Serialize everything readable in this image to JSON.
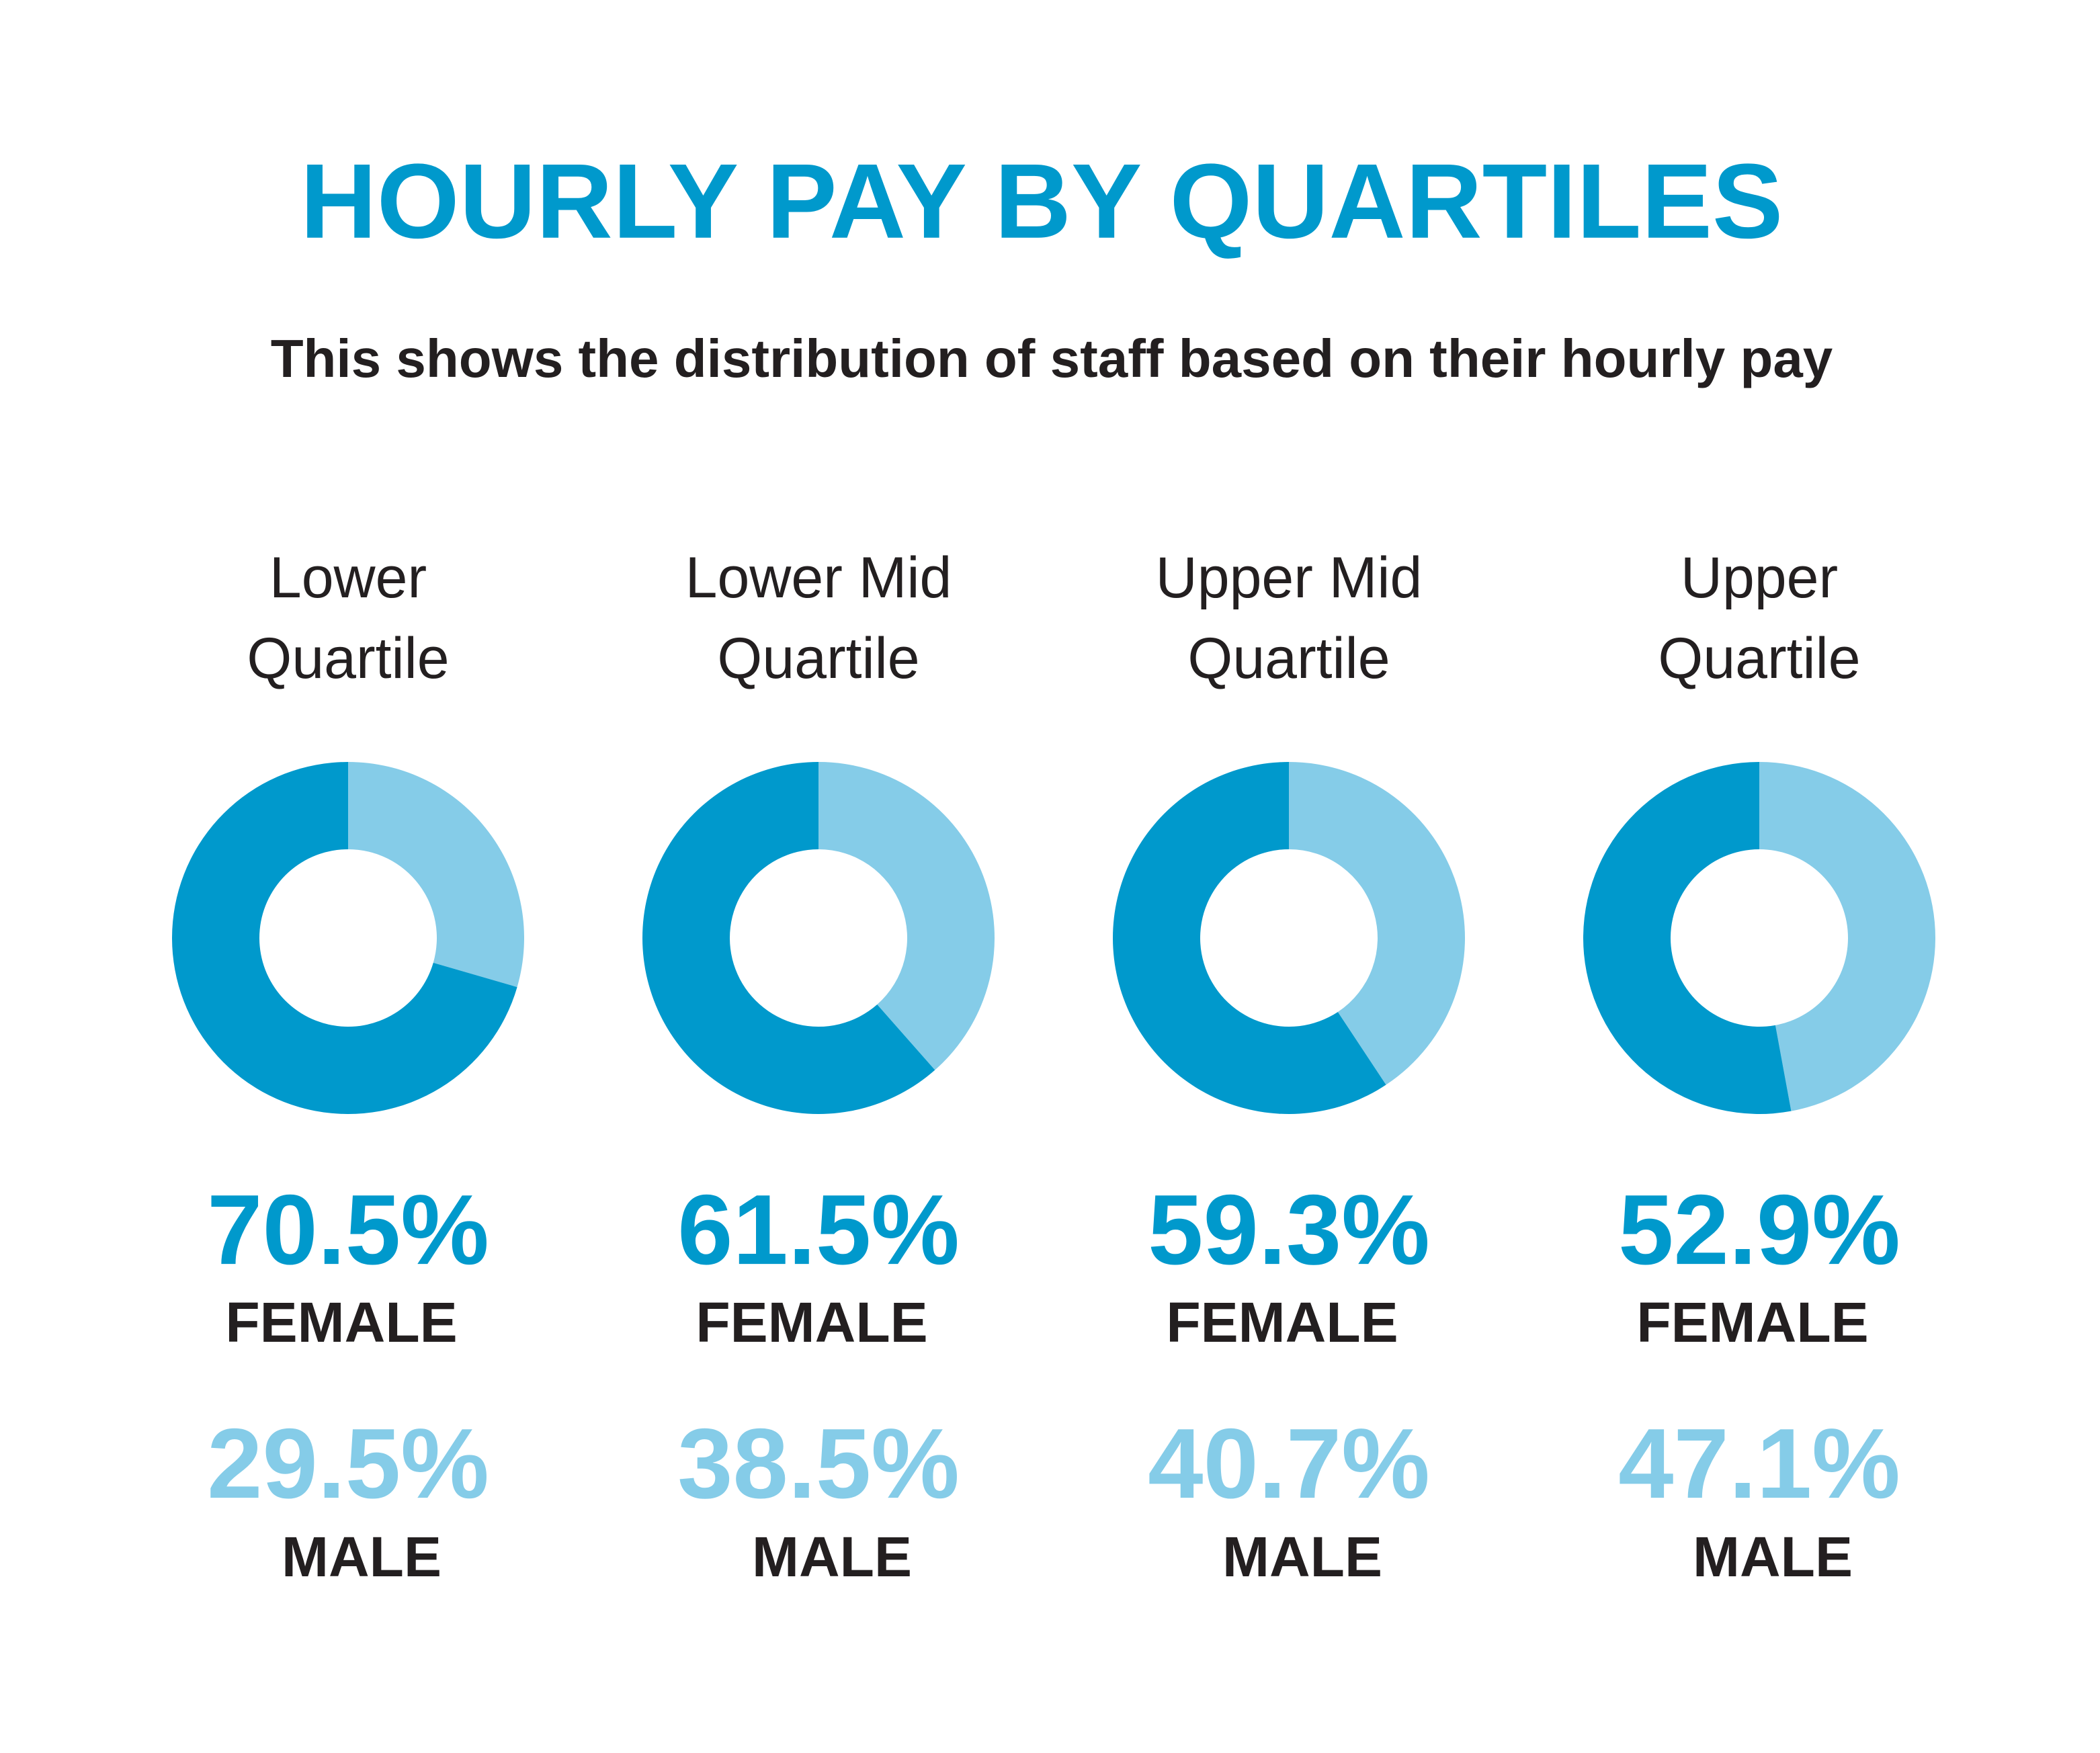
{
  "title": "HOURLY PAY BY QUARTILES",
  "subtitle": "This shows the distribution of staff based on their hourly pay",
  "chart_data": [
    {
      "type": "pie",
      "title": "Lower Quartile",
      "donut": true,
      "series": [
        {
          "name": "FEMALE",
          "color": "#0099cc",
          "values": [
            70.5
          ],
          "value_labels": [
            "70.5%"
          ]
        },
        {
          "name": "MALE",
          "color": "#85cce8",
          "values": [
            29.5
          ],
          "value_labels": [
            "29.5%"
          ]
        }
      ]
    },
    {
      "type": "pie",
      "title": "Lower Mid Quartile",
      "donut": true,
      "series": [
        {
          "name": "FEMALE",
          "color": "#0099cc",
          "values": [
            61.5
          ],
          "value_labels": [
            "61.5%"
          ]
        },
        {
          "name": "MALE",
          "color": "#85cce8",
          "values": [
            38.5
          ],
          "value_labels": [
            "38.5%"
          ]
        }
      ]
    },
    {
      "type": "pie",
      "title": "Upper Mid Quartile",
      "donut": true,
      "series": [
        {
          "name": "FEMALE",
          "color": "#0099cc",
          "values": [
            59.3
          ],
          "value_labels": [
            "59.3%"
          ]
        },
        {
          "name": "MALE",
          "color": "#85cce8",
          "values": [
            40.7
          ],
          "value_labels": [
            "40.7%"
          ]
        }
      ]
    },
    {
      "type": "pie",
      "title": "Upper Quartile",
      "donut": true,
      "series": [
        {
          "name": "FEMALE",
          "color": "#0099cc",
          "values": [
            52.9
          ],
          "value_labels": [
            "52.9%"
          ]
        },
        {
          "name": "MALE",
          "color": "#85cce8",
          "values": [
            47.1
          ],
          "value_labels": [
            "47.1%"
          ]
        }
      ]
    }
  ]
}
